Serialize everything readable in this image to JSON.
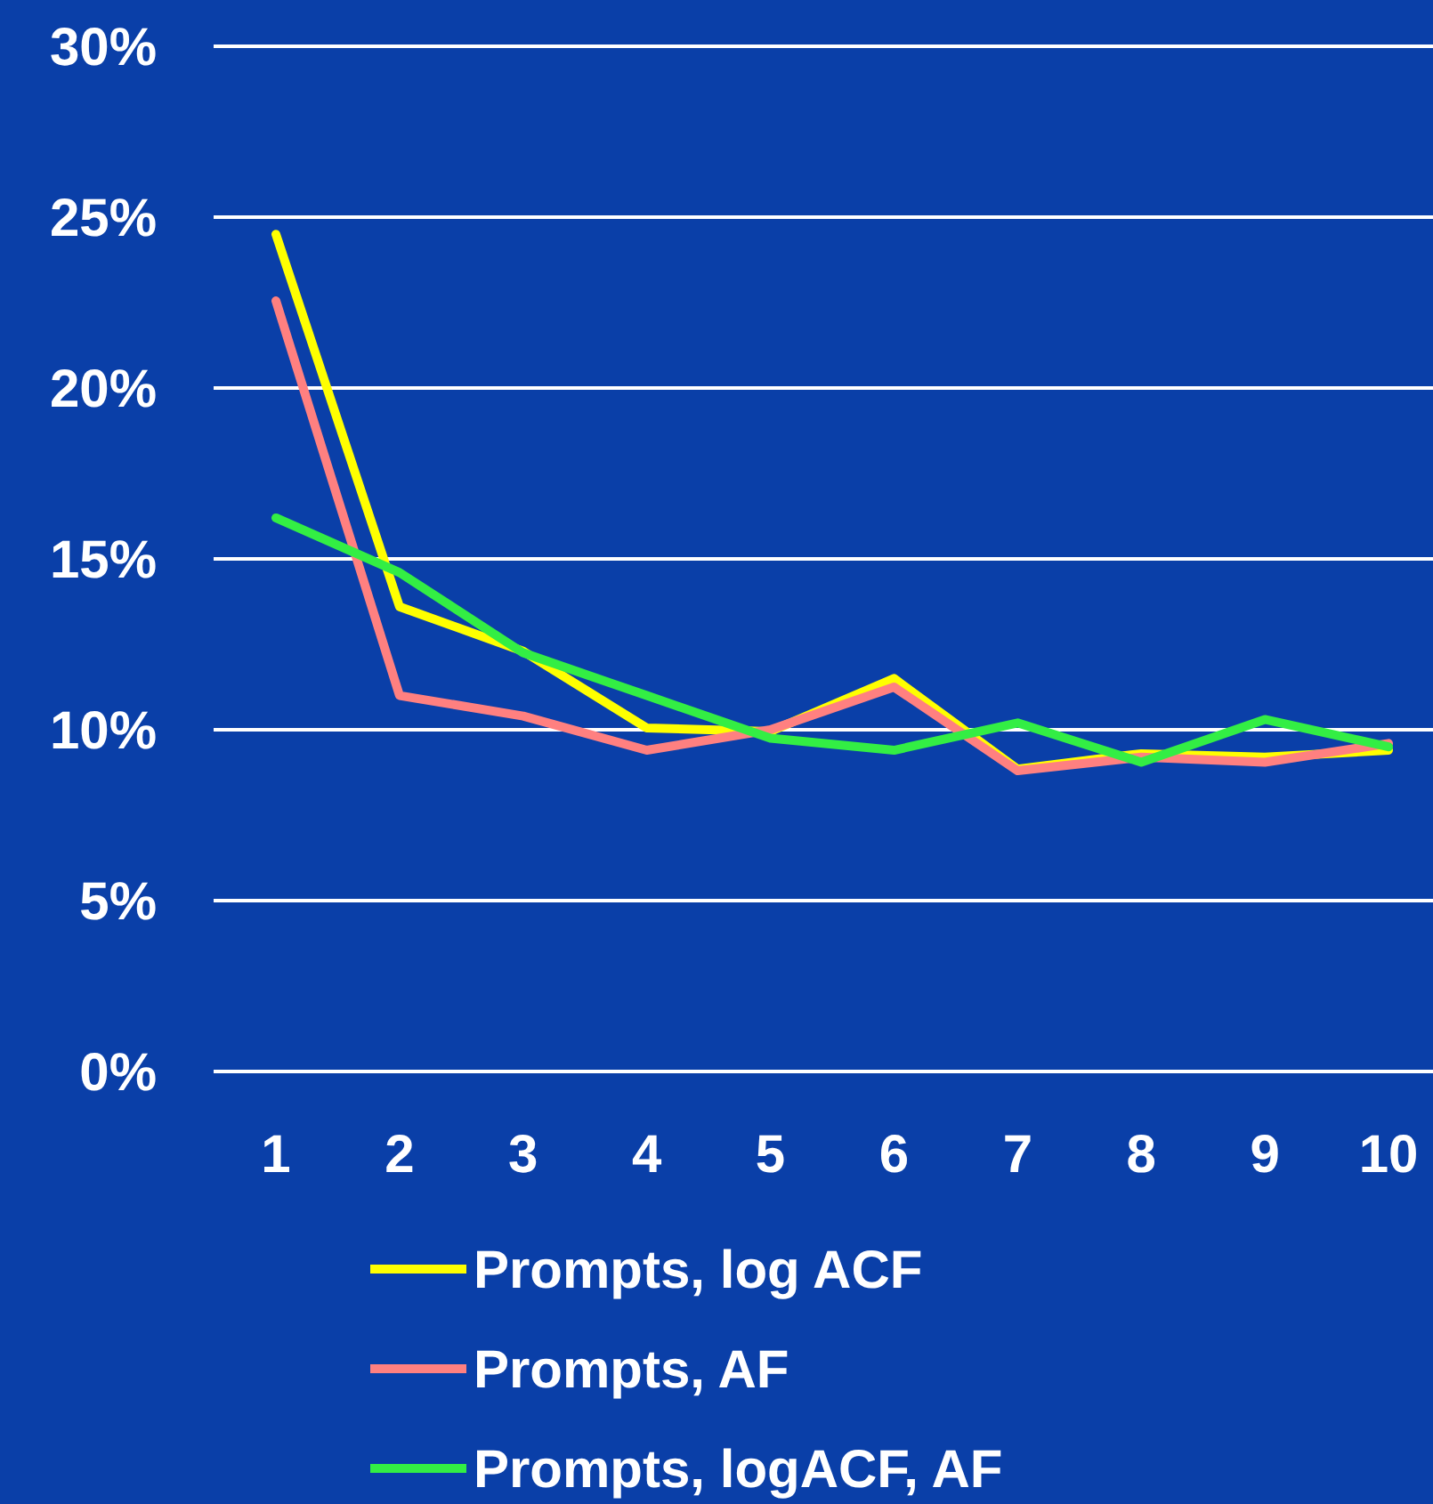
{
  "chart_data": {
    "type": "line",
    "categories": [
      "1",
      "2",
      "3",
      "4",
      "5",
      "6",
      "7",
      "8",
      "9",
      "10"
    ],
    "series": [
      {
        "name": "Prompts, log ACF",
        "color": "#ffff00",
        "values": [
          24.5,
          13.6,
          12.3,
          10.05,
          9.95,
          11.5,
          8.85,
          9.3,
          9.2,
          9.4
        ]
      },
      {
        "name": "Prompts, AF",
        "color": "#ff8080",
        "values": [
          22.55,
          11.0,
          10.4,
          9.4,
          10.0,
          11.25,
          8.8,
          9.2,
          9.05,
          9.6
        ]
      },
      {
        "name": "Prompts, logACF, AF",
        "color": "#33ee44",
        "values": [
          16.2,
          14.6,
          12.25,
          11.0,
          9.75,
          9.4,
          10.2,
          9.05,
          10.3,
          9.5
        ]
      }
    ],
    "ylim": [
      0,
      30
    ],
    "yticks": [
      {
        "value": 0,
        "label": "0%"
      },
      {
        "value": 5,
        "label": "5%"
      },
      {
        "value": 10,
        "label": "10%"
      },
      {
        "value": 15,
        "label": "15%"
      },
      {
        "value": 20,
        "label": "20%"
      },
      {
        "value": 25,
        "label": "25%"
      },
      {
        "value": 30,
        "label": "30%"
      }
    ],
    "grid": "y",
    "legend": "bottom",
    "marker": "none",
    "line_style": "solid"
  }
}
